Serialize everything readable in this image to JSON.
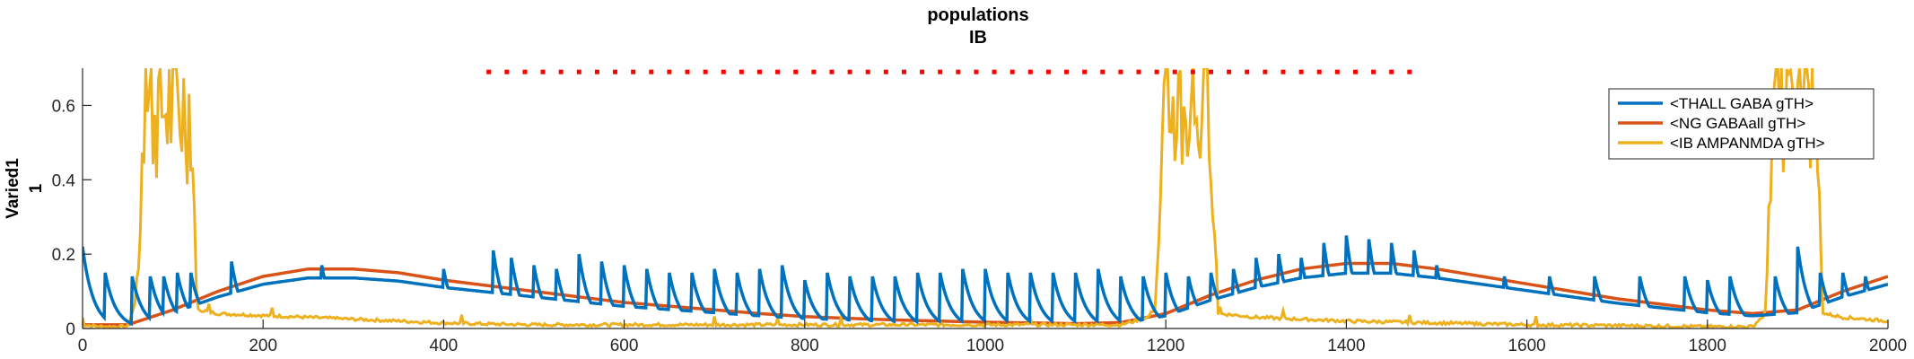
{
  "chart_data": {
    "type": "line",
    "title": "populations",
    "subtitle": "IB",
    "ylabel_line1": "Varied1",
    "ylabel_line2": "1",
    "xlim": [
      0,
      2000
    ],
    "ylim": [
      0,
      0.7
    ],
    "x_ticks": [
      0,
      200,
      400,
      600,
      800,
      1000,
      1200,
      1400,
      1600,
      1800,
      2000
    ],
    "y_ticks": [
      0,
      0.2,
      0.4,
      0.6
    ],
    "y_tick_labels": [
      "0",
      "0.2",
      "0.4",
      "0.6"
    ],
    "legend_position": "top-right",
    "grid": false,
    "stimulus_marker": {
      "color": "#ff0000",
      "y": 0.69,
      "x_start": 450,
      "x_end": 1480
    },
    "series": [
      {
        "name": "<THALL GABA gTH>",
        "color": "#0072bd",
        "spike_times": [
          0,
          25,
          55,
          75,
          90,
          105,
          120,
          165,
          265,
          400,
          455,
          475,
          500,
          525,
          550,
          575,
          600,
          625,
          650,
          675,
          700,
          725,
          750,
          775,
          800,
          825,
          850,
          875,
          900,
          925,
          950,
          975,
          1000,
          1025,
          1050,
          1075,
          1100,
          1125,
          1150,
          1175,
          1200,
          1225,
          1250,
          1275,
          1300,
          1325,
          1350,
          1375,
          1400,
          1425,
          1450,
          1475,
          1500,
          1575,
          1625,
          1675,
          1725,
          1775,
          1800,
          1825,
          1875,
          1900,
          1925,
          1950,
          1975
        ],
        "spike_peaks": [
          0.22,
          0.15,
          0.14,
          0.14,
          0.14,
          0.15,
          0.15,
          0.18,
          0.17,
          0.16,
          0.21,
          0.19,
          0.17,
          0.16,
          0.2,
          0.18,
          0.17,
          0.16,
          0.15,
          0.15,
          0.16,
          0.15,
          0.16,
          0.17,
          0.13,
          0.15,
          0.14,
          0.14,
          0.14,
          0.15,
          0.15,
          0.16,
          0.16,
          0.15,
          0.15,
          0.15,
          0.15,
          0.16,
          0.14,
          0.14,
          0.15,
          0.14,
          0.15,
          0.16,
          0.19,
          0.2,
          0.19,
          0.23,
          0.25,
          0.24,
          0.23,
          0.21,
          0.17,
          0.14,
          0.14,
          0.14,
          0.14,
          0.14,
          0.13,
          0.14,
          0.14,
          0.22,
          0.15,
          0.15,
          0.14
        ],
        "decay": 12
      },
      {
        "name": "<NG GABAall gTH>",
        "color": "#d95319",
        "x": [
          0,
          50,
          100,
          150,
          200,
          250,
          300,
          350,
          400,
          450,
          500,
          550,
          600,
          650,
          700,
          750,
          800,
          850,
          900,
          950,
          1000,
          1050,
          1100,
          1150,
          1200,
          1250,
          1300,
          1350,
          1400,
          1450,
          1500,
          1550,
          1600,
          1650,
          1700,
          1750,
          1800,
          1850,
          1900,
          1950,
          2000
        ],
        "y": [
          0.01,
          0.01,
          0.05,
          0.1,
          0.14,
          0.16,
          0.16,
          0.15,
          0.13,
          0.115,
          0.1,
          0.085,
          0.07,
          0.06,
          0.05,
          0.04,
          0.032,
          0.027,
          0.023,
          0.02,
          0.017,
          0.015,
          0.013,
          0.016,
          0.04,
          0.09,
          0.13,
          0.16,
          0.175,
          0.175,
          0.16,
          0.14,
          0.12,
          0.1,
          0.08,
          0.065,
          0.05,
          0.04,
          0.05,
          0.1,
          0.14
        ]
      },
      {
        "name": "<IB AMPANMDA gTH>",
        "color": "#edb120",
        "bursts": [
          [
            70,
            120
          ],
          [
            1200,
            1250
          ],
          [
            1875,
            1920
          ]
        ],
        "burst_level": 0.7,
        "x": [
          0,
          20,
          50,
          60,
          130,
          150,
          200,
          250,
          300,
          350,
          400,
          450,
          500,
          550,
          600,
          650,
          700,
          750,
          800,
          850,
          900,
          950,
          1000,
          1050,
          1100,
          1150,
          1180,
          1190,
          1260,
          1300,
          1400,
          1500,
          1600,
          1700,
          1800,
          1850,
          1860,
          1930,
          1950,
          2000
        ],
        "y": [
          0.01,
          0.005,
          0.005,
          0.08,
          0.05,
          0.04,
          0.035,
          0.03,
          0.025,
          0.02,
          0.015,
          0.012,
          0.01,
          0.01,
          0.01,
          0.01,
          0.01,
          0.01,
          0.01,
          0.01,
          0.01,
          0.01,
          0.01,
          0.01,
          0.01,
          0.01,
          0.03,
          0.06,
          0.04,
          0.03,
          0.02,
          0.015,
          0.01,
          0.008,
          0.005,
          0.005,
          0.03,
          0.04,
          0.03,
          0.02
        ]
      }
    ]
  }
}
